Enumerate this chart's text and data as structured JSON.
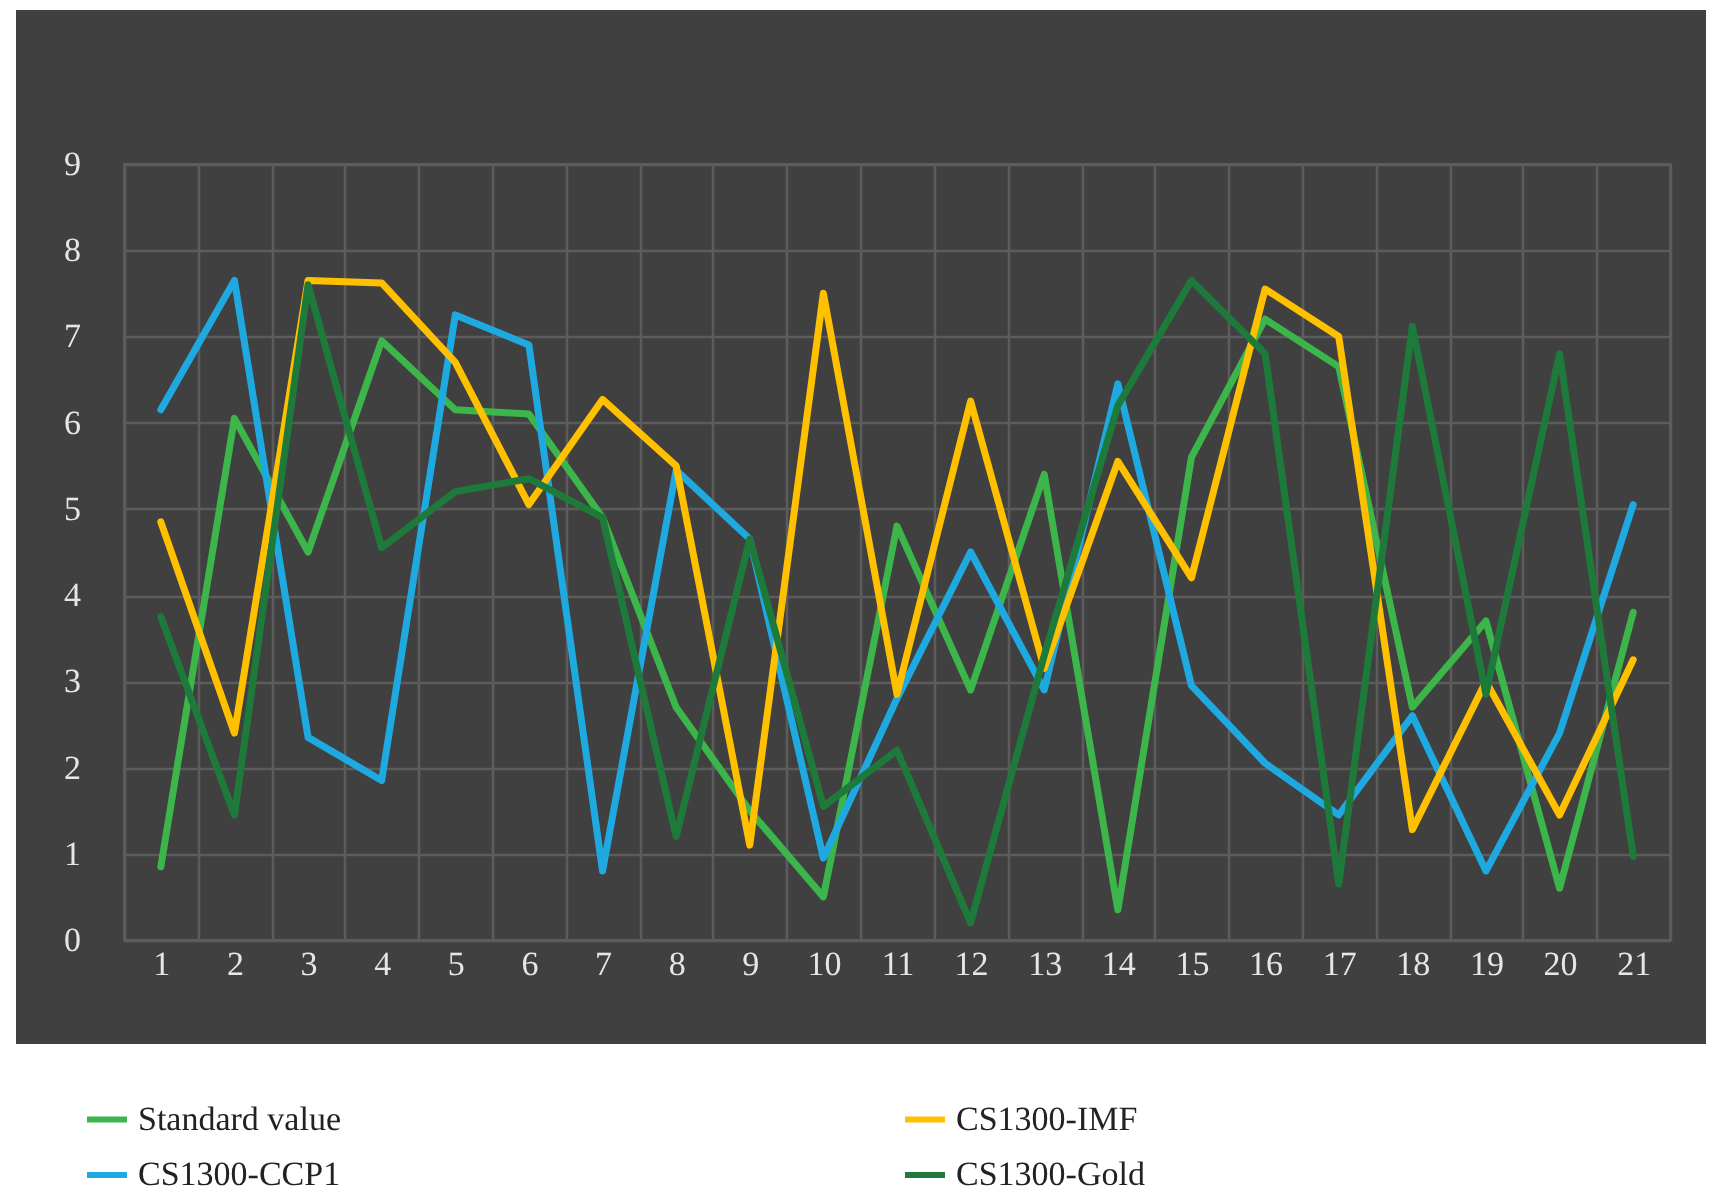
{
  "chart_data": {
    "type": "line",
    "x": [
      1,
      2,
      3,
      4,
      5,
      6,
      7,
      8,
      9,
      10,
      11,
      12,
      13,
      14,
      15,
      16,
      17,
      18,
      19,
      20,
      21
    ],
    "series": [
      {
        "name": "Standard value",
        "color": "#3cb54a",
        "values": [
          0.85,
          6.05,
          4.5,
          6.95,
          6.15,
          6.1,
          4.9,
          2.7,
          1.5,
          0.5,
          4.8,
          2.9,
          5.4,
          0.35,
          5.6,
          7.2,
          6.65,
          2.7,
          3.7,
          0.6,
          3.8
        ]
      },
      {
        "name": "CS1300-CCP1",
        "color": "#1fa9e1",
        "values": [
          6.15,
          7.65,
          2.35,
          1.85,
          7.25,
          6.9,
          0.8,
          5.45,
          4.65,
          0.95,
          2.8,
          4.5,
          2.9,
          6.45,
          2.95,
          2.05,
          1.45,
          2.6,
          0.8,
          2.4,
          5.05
        ]
      },
      {
        "name": "CS1300-IMF",
        "color": "#ffc000",
        "values": [
          4.85,
          2.4,
          7.65,
          7.62,
          6.7,
          5.05,
          6.27,
          5.5,
          1.1,
          7.5,
          2.85,
          6.25,
          3.15,
          5.55,
          4.2,
          7.55,
          7.0,
          1.28,
          3.0,
          1.45,
          3.25
        ]
      },
      {
        "name": "CS1300-Gold",
        "color": "#1e7a3a",
        "values": [
          3.75,
          1.45,
          7.6,
          4.55,
          5.2,
          5.35,
          4.9,
          1.2,
          4.65,
          1.55,
          2.2,
          0.2,
          3.3,
          6.2,
          7.65,
          6.8,
          0.65,
          7.12,
          2.85,
          6.8,
          0.97
        ]
      }
    ],
    "xlim": [
      0.5,
      21.5
    ],
    "xticks": [
      {
        "value": 0.5,
        "label": null
      },
      1,
      {
        "value": 1.5,
        "label": null
      },
      2,
      {
        "value": 2.5,
        "label": null
      },
      3,
      {
        "value": 3.5,
        "label": null
      },
      4,
      {
        "value": 4.5,
        "label": null
      },
      5,
      {
        "value": 5.5,
        "label": null
      },
      6,
      {
        "value": 6.5,
        "label": null
      },
      7,
      {
        "value": 7.5,
        "label": null
      },
      8,
      {
        "value": 8.5,
        "label": null
      },
      9,
      {
        "value": 9.5,
        "label": null
      },
      10,
      {
        "value": 10.5,
        "label": null
      },
      11,
      {
        "value": 11.5,
        "label": null
      },
      12,
      {
        "value": 12.5,
        "label": null
      },
      13,
      {
        "value": 13.5,
        "label": null
      },
      14,
      {
        "value": 14.5,
        "label": null
      },
      15,
      {
        "value": 15.5,
        "label": null
      },
      16,
      {
        "value": 16.5,
        "label": null
      },
      17,
      {
        "value": 17.5,
        "label": null
      },
      18,
      {
        "value": 18.5,
        "label": null
      },
      19,
      {
        "value": 19.5,
        "label": null
      },
      20,
      {
        "value": 20.5,
        "label": null
      },
      21,
      {
        "value": 21.5,
        "label": null
      }
    ],
    "ylim": [
      0,
      9
    ],
    "yticks": [
      0,
      1,
      2,
      3,
      4,
      5,
      6,
      7,
      8,
      9
    ],
    "grid": true,
    "legend": "bottom",
    "marker": "none",
    "line_style": "solid"
  }
}
